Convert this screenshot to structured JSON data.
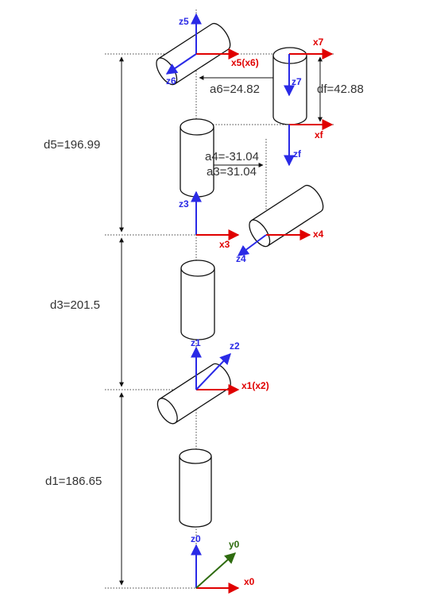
{
  "colors": {
    "x_axis": "#e00000",
    "z_axis": "#2a2ae6",
    "y_axis": "#2e6b0f",
    "outline": "#111111",
    "guide": "#444444"
  },
  "axis_labels": {
    "z0": "z0",
    "y0": "y0",
    "x0": "x0",
    "z1": "z1",
    "z2": "z2",
    "x1": "x1(x2)",
    "z3": "z3",
    "x3": "x3",
    "z4": "z4",
    "x4": "x4",
    "z5": "z5",
    "x5": "x5(x6)",
    "z6": "z6",
    "z7": "z7",
    "x7": "x7",
    "xf": "xf",
    "zf": "zf"
  },
  "dimensions": {
    "d1": "d1=186.65",
    "d3": "d3=201.5",
    "d5": "d5=196.99",
    "a6": "a6=24.82",
    "df": "df=42.88",
    "a4": "a4=-31.04",
    "a3": "a3=31.04"
  }
}
